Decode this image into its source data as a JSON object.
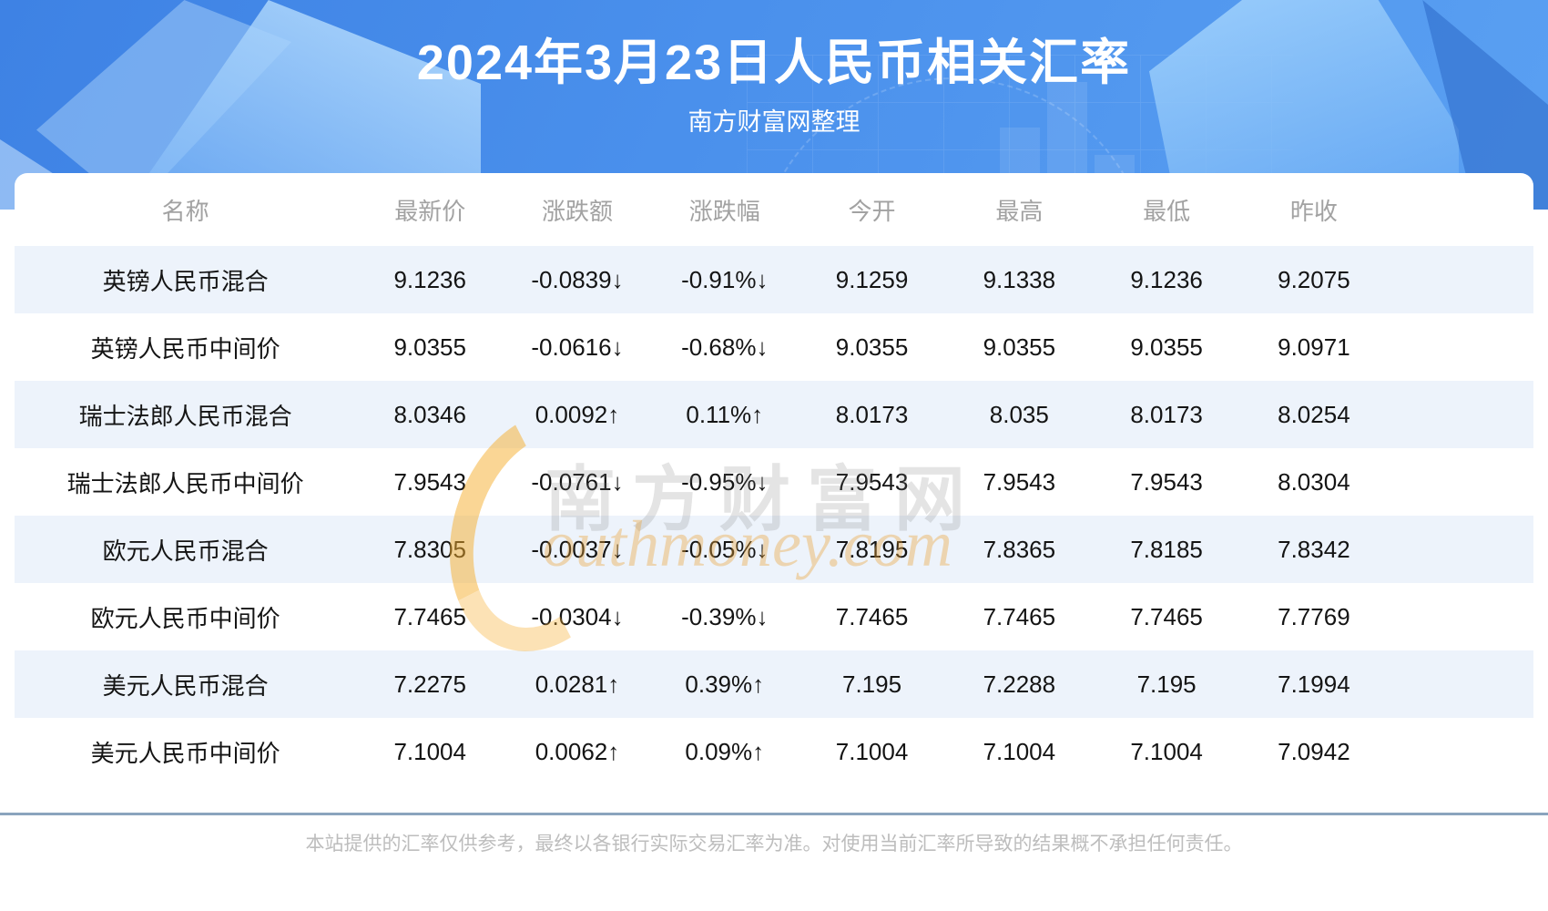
{
  "header": {
    "title": "2024年3月23日人民币相关汇率",
    "subtitle": "南方财富网整理"
  },
  "table": {
    "headers": [
      "名称",
      "最新价",
      "涨跌额",
      "涨跌幅",
      "今开",
      "最高",
      "最低",
      "昨收"
    ],
    "rows": [
      {
        "name": "英镑人民币混合",
        "latest": "9.1236",
        "change": "-0.0839↓",
        "change_pct": "-0.91%↓",
        "open": "9.1259",
        "high": "9.1338",
        "low": "9.1236",
        "prev_close": "9.2075",
        "direction": "down"
      },
      {
        "name": "英镑人民币中间价",
        "latest": "9.0355",
        "change": "-0.0616↓",
        "change_pct": "-0.68%↓",
        "open": "9.0355",
        "high": "9.0355",
        "low": "9.0355",
        "prev_close": "9.0971",
        "direction": "down"
      },
      {
        "name": "瑞士法郎人民币混合",
        "latest": "8.0346",
        "change": "0.0092↑",
        "change_pct": "0.11%↑",
        "open": "8.0173",
        "high": "8.035",
        "low": "8.0173",
        "prev_close": "8.0254",
        "direction": "up"
      },
      {
        "name": "瑞士法郎人民币中间价",
        "latest": "7.9543",
        "change": "-0.0761↓",
        "change_pct": "-0.95%↓",
        "open": "7.9543",
        "high": "7.9543",
        "low": "7.9543",
        "prev_close": "8.0304",
        "direction": "down"
      },
      {
        "name": "欧元人民币混合",
        "latest": "7.8305",
        "change": "-0.0037↓",
        "change_pct": "-0.05%↓",
        "open": "7.8195",
        "high": "7.8365",
        "low": "7.8185",
        "prev_close": "7.8342",
        "direction": "down"
      },
      {
        "name": "欧元人民币中间价",
        "latest": "7.7465",
        "change": "-0.0304↓",
        "change_pct": "-0.39%↓",
        "open": "7.7465",
        "high": "7.7465",
        "low": "7.7465",
        "prev_close": "7.7769",
        "direction": "down"
      },
      {
        "name": "美元人民币混合",
        "latest": "7.2275",
        "change": "0.0281↑",
        "change_pct": "0.39%↑",
        "open": "7.195",
        "high": "7.2288",
        "low": "7.195",
        "prev_close": "7.1994",
        "direction": "up"
      },
      {
        "name": "美元人民币中间价",
        "latest": "7.1004",
        "change": "0.0062↑",
        "change_pct": "0.09%↑",
        "open": "7.1004",
        "high": "7.1004",
        "low": "7.1004",
        "prev_close": "7.0942",
        "direction": "up"
      }
    ]
  },
  "watermark": {
    "cn": "南方财富网",
    "en": "outhmoney.com"
  },
  "footer": {
    "disclaimer": "本站提供的汇率仅供参考，最终以各银行实际交易汇率为准。对使用当前汇率所导致的结果概不承担任何责任。"
  },
  "colors": {
    "up_red": "#f20d0d",
    "down_green": "#0a9b0a",
    "banner_blue": "#4a90ec",
    "row_alt_blue": "#edf3fb",
    "divider_blue_gray": "#8ba4bd"
  }
}
